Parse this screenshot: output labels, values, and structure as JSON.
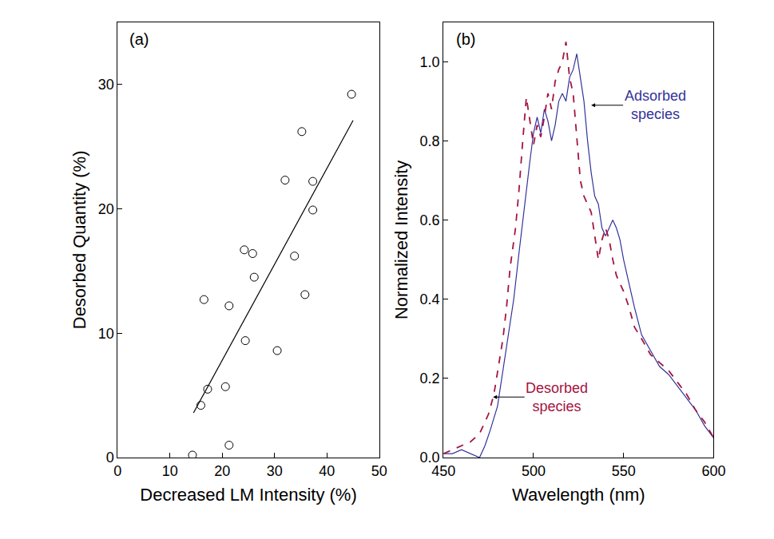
{
  "chart_data": [
    {
      "type": "scatter",
      "title": "(a)",
      "x_label": "Decreased LM Intensity (%)",
      "y_label": "Desorbed Quantity (%)",
      "xlim": [
        0,
        50
      ],
      "xticks": [
        0,
        10,
        20,
        30,
        40,
        50
      ],
      "ylim": [
        0,
        35
      ],
      "yticks": [
        0,
        10,
        20,
        30
      ],
      "series": [
        {
          "type": "scatter",
          "marker": "open_circle",
          "color": "#000000",
          "x": [
            14.3,
            15.9,
            17.2,
            16.5,
            21.3,
            21.3,
            20.6,
            24.4,
            24.2,
            25.8,
            26.1,
            30.5,
            32.0,
            33.8,
            35.2,
            35.8,
            37.3,
            37.3,
            44.7
          ],
          "values": [
            0.2,
            4.2,
            5.5,
            12.7,
            12.2,
            1.0,
            5.7,
            9.4,
            16.7,
            16.4,
            14.5,
            8.6,
            22.3,
            16.2,
            26.2,
            13.1,
            22.2,
            19.9,
            29.2
          ]
        },
        {
          "type": "line",
          "line_style": "solid",
          "color": "#000000",
          "x": [
            14.5,
            45
          ],
          "values": [
            3.6,
            27.1
          ]
        }
      ]
    },
    {
      "type": "line",
      "title": "(b)",
      "x_label": "Wavelength (nm)",
      "y_label": "Normalized Intensity",
      "xlim": [
        450,
        600
      ],
      "xticks": [
        450,
        500,
        550,
        600
      ],
      "ylim": [
        0,
        1.1
      ],
      "yticks": [
        {
          "value": 0,
          "label": "0.0"
        },
        0.2,
        0.4,
        0.6,
        0.8,
        {
          "value": 1,
          "label": "1.0"
        }
      ],
      "series": [
        {
          "name": "Adsorbed species",
          "color": "#33339a",
          "line_style": "solid",
          "x": [
            450,
            455,
            460,
            465,
            470,
            473,
            476,
            480,
            483,
            486,
            489,
            492,
            494,
            496,
            498,
            500,
            502,
            504,
            506,
            508,
            510,
            512,
            514,
            516,
            518,
            520,
            522,
            524,
            526,
            528,
            530,
            532,
            534,
            536,
            538,
            540,
            542,
            544,
            546,
            548,
            550,
            553,
            556,
            560,
            565,
            570,
            575,
            580,
            585,
            590,
            595,
            600
          ],
          "values": [
            0.01,
            0.01,
            0.02,
            0.01,
            0.0,
            0.03,
            0.07,
            0.13,
            0.22,
            0.3,
            0.4,
            0.52,
            0.6,
            0.68,
            0.75,
            0.82,
            0.86,
            0.82,
            0.88,
            0.85,
            0.8,
            0.84,
            0.9,
            0.92,
            0.9,
            0.96,
            0.98,
            1.02,
            0.96,
            0.9,
            0.8,
            0.72,
            0.66,
            0.64,
            0.58,
            0.56,
            0.58,
            0.6,
            0.58,
            0.55,
            0.5,
            0.44,
            0.38,
            0.31,
            0.27,
            0.23,
            0.21,
            0.18,
            0.15,
            0.12,
            0.08,
            0.05
          ]
        },
        {
          "name": "Desorbed species",
          "color": "#a3153f",
          "line_style": "dash",
          "x": [
            450,
            455,
            460,
            465,
            470,
            475,
            478,
            480,
            483,
            485,
            487,
            490,
            492,
            494,
            496,
            498,
            500,
            502,
            504,
            506,
            508,
            510,
            512,
            514,
            516,
            518,
            520,
            522,
            524,
            526,
            528,
            530,
            532,
            534,
            536,
            538,
            540,
            542,
            544,
            546,
            548,
            550,
            553,
            556,
            560,
            565,
            570,
            575,
            580,
            585,
            590,
            595,
            600
          ],
          "values": [
            0.01,
            0.02,
            0.03,
            0.04,
            0.06,
            0.11,
            0.16,
            0.22,
            0.3,
            0.38,
            0.48,
            0.58,
            0.68,
            0.8,
            0.91,
            0.85,
            0.79,
            0.84,
            0.81,
            0.86,
            0.92,
            0.88,
            0.95,
            0.98,
            1.0,
            1.05,
            0.96,
            0.92,
            0.8,
            0.7,
            0.66,
            0.64,
            0.62,
            0.56,
            0.5,
            0.55,
            0.58,
            0.55,
            0.5,
            0.46,
            0.44,
            0.42,
            0.38,
            0.33,
            0.3,
            0.26,
            0.24,
            0.22,
            0.19,
            0.16,
            0.12,
            0.09,
            0.05
          ]
        }
      ],
      "annotations": [
        {
          "text": "Adsorbed species",
          "x": 532,
          "y": 0.89
        },
        {
          "text": "Desorbed species",
          "x": 477.5,
          "y": 0.153
        }
      ]
    }
  ]
}
